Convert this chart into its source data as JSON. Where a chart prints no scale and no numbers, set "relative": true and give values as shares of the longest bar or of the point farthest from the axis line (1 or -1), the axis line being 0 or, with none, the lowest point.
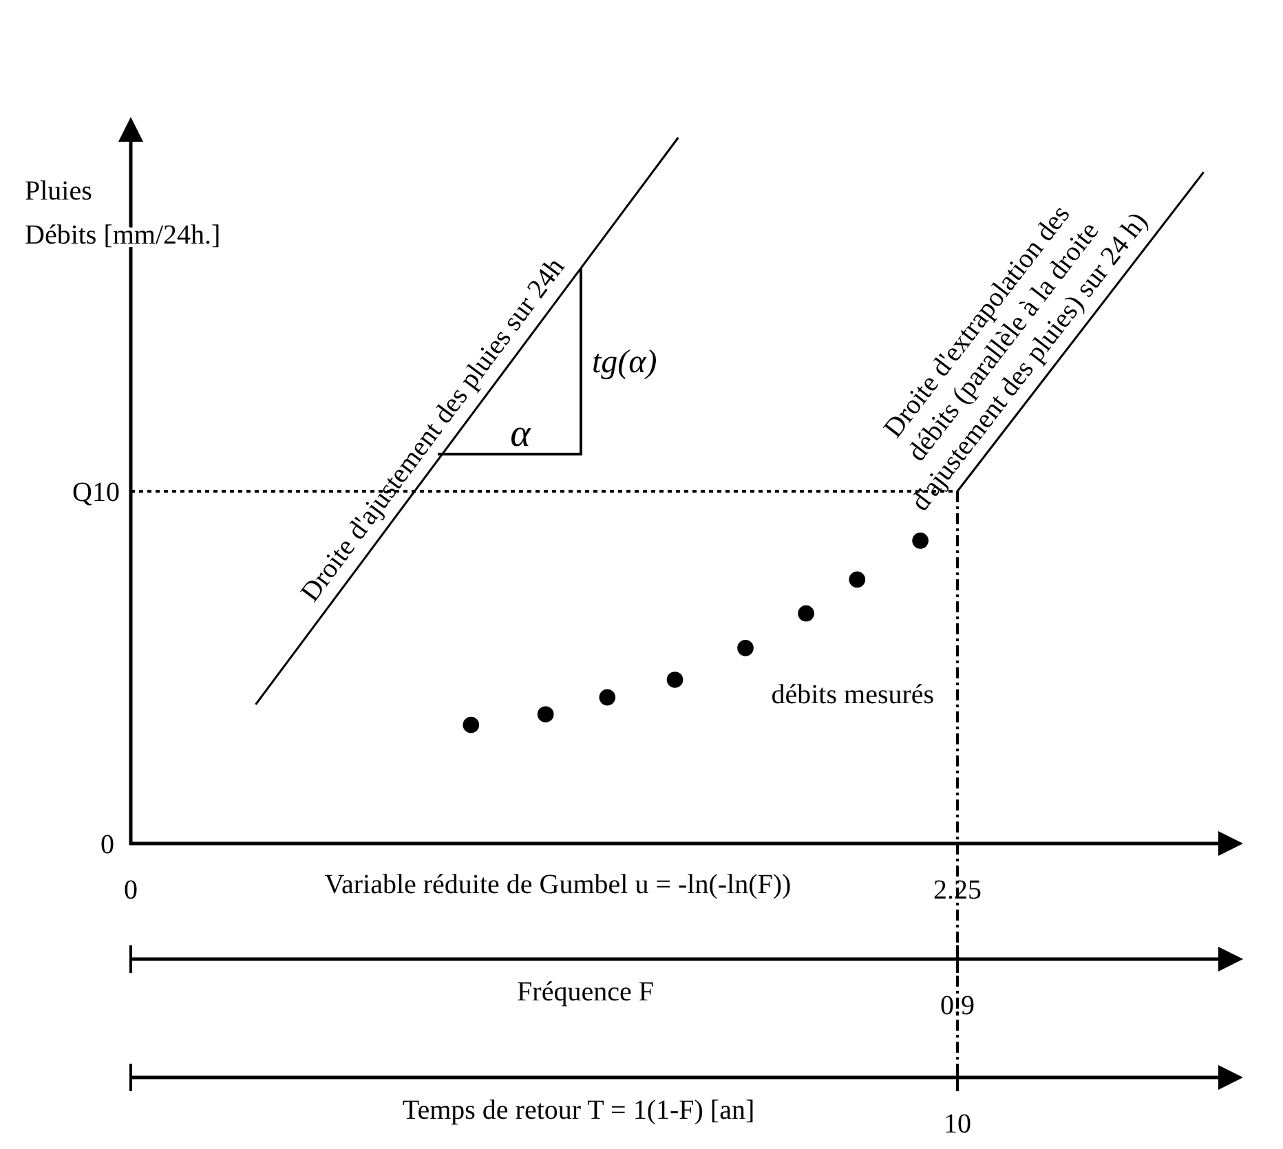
{
  "chart_data": {
    "type": "scatter",
    "relative": true,
    "xlabel": "Variable réduite de Gumbel u = -ln(-ln(F))",
    "ylabel": "Pluies\nDébits [mm/24h.]",
    "xlim": [
      0,
      2.96
    ],
    "xticks": [
      0,
      2.25
    ],
    "series": [
      {
        "type": "line",
        "name": "Droite d'ajustement des pluies sur 24h",
        "color": "#000000",
        "marker": "none",
        "x": [
          0.34,
          1.49
        ],
        "values": [
          0.197,
          1
        ]
      },
      {
        "type": "line",
        "name": "Droite d'extrapolation des\ndébits (parallèle à la droite\nd'ajustement des pluies) sur 24 h)",
        "color": "#000000",
        "marker": "none",
        "x": [
          2.25,
          2.92
        ],
        "values": [
          0.499,
          0.951
        ]
      },
      {
        "name": "débits mesurés",
        "color": "#000000",
        "x": [
          0.926,
          1.129,
          1.297,
          1.481,
          1.673,
          1.838,
          1.977,
          2.149
        ],
        "values": [
          0.168,
          0.183,
          0.207,
          0.232,
          0.277,
          0.326,
          0.374,
          0.429
        ]
      }
    ],
    "ref_lines": [
      {
        "axis": "y",
        "value": 0.499,
        "label": "Q10",
        "line_style": "dotted"
      },
      {
        "axis": "x",
        "value": 2.25,
        "label": null,
        "line_style": "dashed"
      }
    ],
    "annotations": [
      "0",
      "α",
      "tg(α)",
      "Fréquence F",
      "0.9",
      "Temps de retour T = 1(1-F)  [an]",
      "10"
    ],
    "marker": "circle"
  }
}
